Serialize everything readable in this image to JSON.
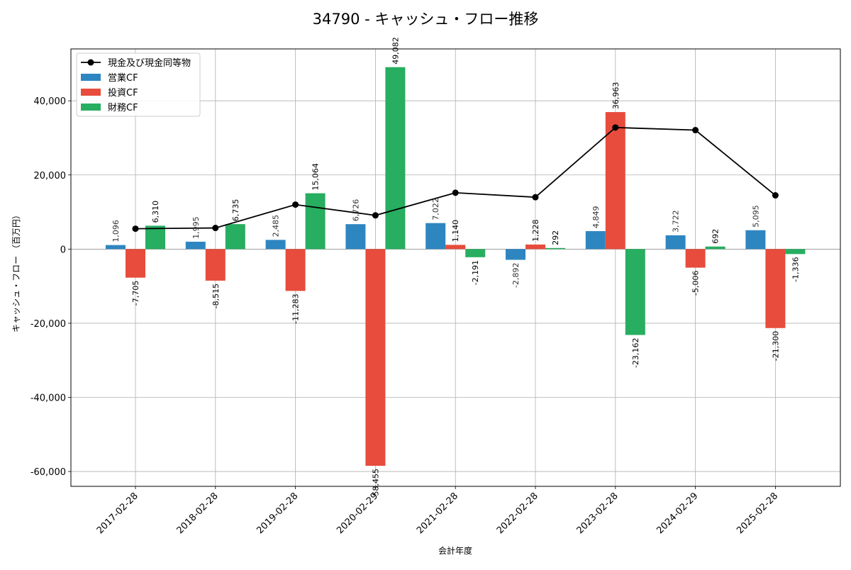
{
  "chart_data": {
    "type": "bar",
    "title": "34790 - キャッシュ・フロー推移",
    "xlabel": "会計年度",
    "ylabel": "キャッシュ・フロー （百万円）",
    "categories": [
      "2017-02-28",
      "2018-02-28",
      "2019-02-28",
      "2020-02-29",
      "2021-02-28",
      "2022-02-28",
      "2023-02-28",
      "2024-02-29",
      "2025-02-28"
    ],
    "ylim": [
      -64000,
      54000
    ],
    "yticks": [
      -60000,
      -40000,
      -20000,
      0,
      20000,
      40000
    ],
    "ytick_labels": [
      "-60,000",
      "-40,000",
      "-20,000",
      "0",
      "20,000",
      "40,000"
    ],
    "grid": true,
    "legend_position": "top-left",
    "series": [
      {
        "name": "営業CF",
        "kind": "bar",
        "color": "#2e86c1",
        "values": [
          1096,
          1995,
          2485,
          6726,
          7022,
          -2892,
          4849,
          3722,
          5095
        ],
        "labels": [
          "1,096",
          "1,995",
          "2,485",
          "6,726",
          "7,022",
          "-2,892",
          "4,849",
          "3,722",
          "5,095"
        ]
      },
      {
        "name": "投資CF",
        "kind": "bar",
        "color": "#e74c3c",
        "values": [
          -7705,
          -8515,
          -11283,
          -58455,
          1140,
          1228,
          36963,
          -5006,
          -21300
        ],
        "labels": [
          "-7,705",
          "-8,515",
          "-11,283",
          "-58,455",
          "1,140",
          "1,228",
          "36,963",
          "-5,006",
          "-21,300"
        ]
      },
      {
        "name": "財務CF",
        "kind": "bar",
        "color": "#27ae60",
        "values": [
          6310,
          6735,
          15064,
          49082,
          -2191,
          292,
          -23162,
          692,
          -1336
        ],
        "labels": [
          "6,310",
          "6,735",
          "15,064",
          "49,082",
          "-2,191",
          "292",
          "-23,162",
          "692",
          "-1,336"
        ]
      },
      {
        "name": "現金及び現金同等物",
        "kind": "line",
        "color": "#000000",
        "values": [
          5500,
          5700,
          12000,
          9100,
          15200,
          14000,
          32800,
          32100,
          14500
        ]
      }
    ]
  }
}
